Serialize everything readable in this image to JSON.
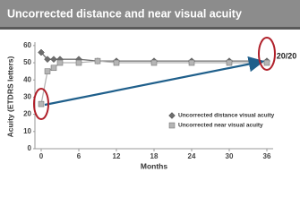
{
  "chart_data": {
    "type": "line",
    "title": "Uncorrected distance and near visual acuity",
    "x_label": "Months",
    "y_label": "Acuity (ETDRS letters)",
    "annotation": "20/20",
    "x": [
      0,
      1,
      2,
      3,
      6,
      9,
      12,
      18,
      24,
      30,
      36
    ],
    "series": [
      {
        "name": "Uncorrected distance visual acuity",
        "color": "#6e6e6e",
        "marker": "diamond",
        "values": [
          56,
          52,
          52,
          52,
          52,
          51,
          51,
          51,
          51,
          51,
          51
        ]
      },
      {
        "name": "Uncorrected near visual acuity",
        "color": "#b5b5b5",
        "marker": "square",
        "values": [
          26,
          45,
          47,
          50,
          50,
          51,
          50,
          50,
          50,
          50,
          50
        ]
      }
    ],
    "xlim": [
      -1,
      37
    ],
    "xticks": [
      0,
      6,
      12,
      18,
      24,
      30,
      36
    ],
    "ylim": [
      0,
      62
    ],
    "yticks": [
      0,
      10,
      20,
      30,
      40,
      50,
      60
    ],
    "grid": false,
    "legend": "lower right"
  }
}
